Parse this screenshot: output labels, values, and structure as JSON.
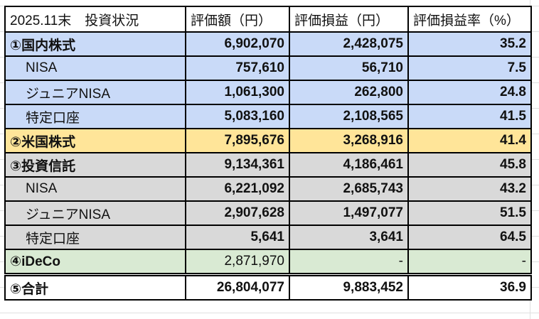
{
  "header": {
    "title": "2025.11末　投資状況",
    "col1": "評価額（円）",
    "col2": "評価損益（円）",
    "col3": "評価損益率（%）"
  },
  "rows": [
    {
      "label": "①国内株式",
      "value": "6,902,070",
      "gain": "2,428,075",
      "rate": "35.2"
    },
    {
      "label": "NISA",
      "value": "757,610",
      "gain": "56,710",
      "rate": "7.5"
    },
    {
      "label": "ジュニアNISA",
      "value": "1,061,300",
      "gain": "262,800",
      "rate": "24.8"
    },
    {
      "label": "特定口座",
      "value": "5,083,160",
      "gain": "2,108,565",
      "rate": "41.5"
    },
    {
      "label": "②米国株式",
      "value": "7,895,676",
      "gain": "3,268,916",
      "rate": "41.4"
    },
    {
      "label": "③投資信託",
      "value": "9,134,361",
      "gain": "4,186,461",
      "rate": "45.8"
    },
    {
      "label": "NISA",
      "value": "6,221,092",
      "gain": "2,685,743",
      "rate": "43.2"
    },
    {
      "label": "ジュニアNISA",
      "value": "2,907,628",
      "gain": "1,497,077",
      "rate": "51.5"
    },
    {
      "label": "特定口座",
      "value": "5,641",
      "gain": "3,641",
      "rate": "64.5"
    },
    {
      "label": "④iDeCo",
      "value": "2,871,970",
      "gain": "-",
      "rate": "-"
    },
    {
      "label": "⑤合計",
      "value": "26,804,077",
      "gain": "9,883,452",
      "rate": "36.9"
    }
  ],
  "colors": {
    "domestic": "#c9daf8",
    "us": "#ffe599",
    "funds": "#d9d9d9",
    "ideco": "#d9ead3"
  }
}
